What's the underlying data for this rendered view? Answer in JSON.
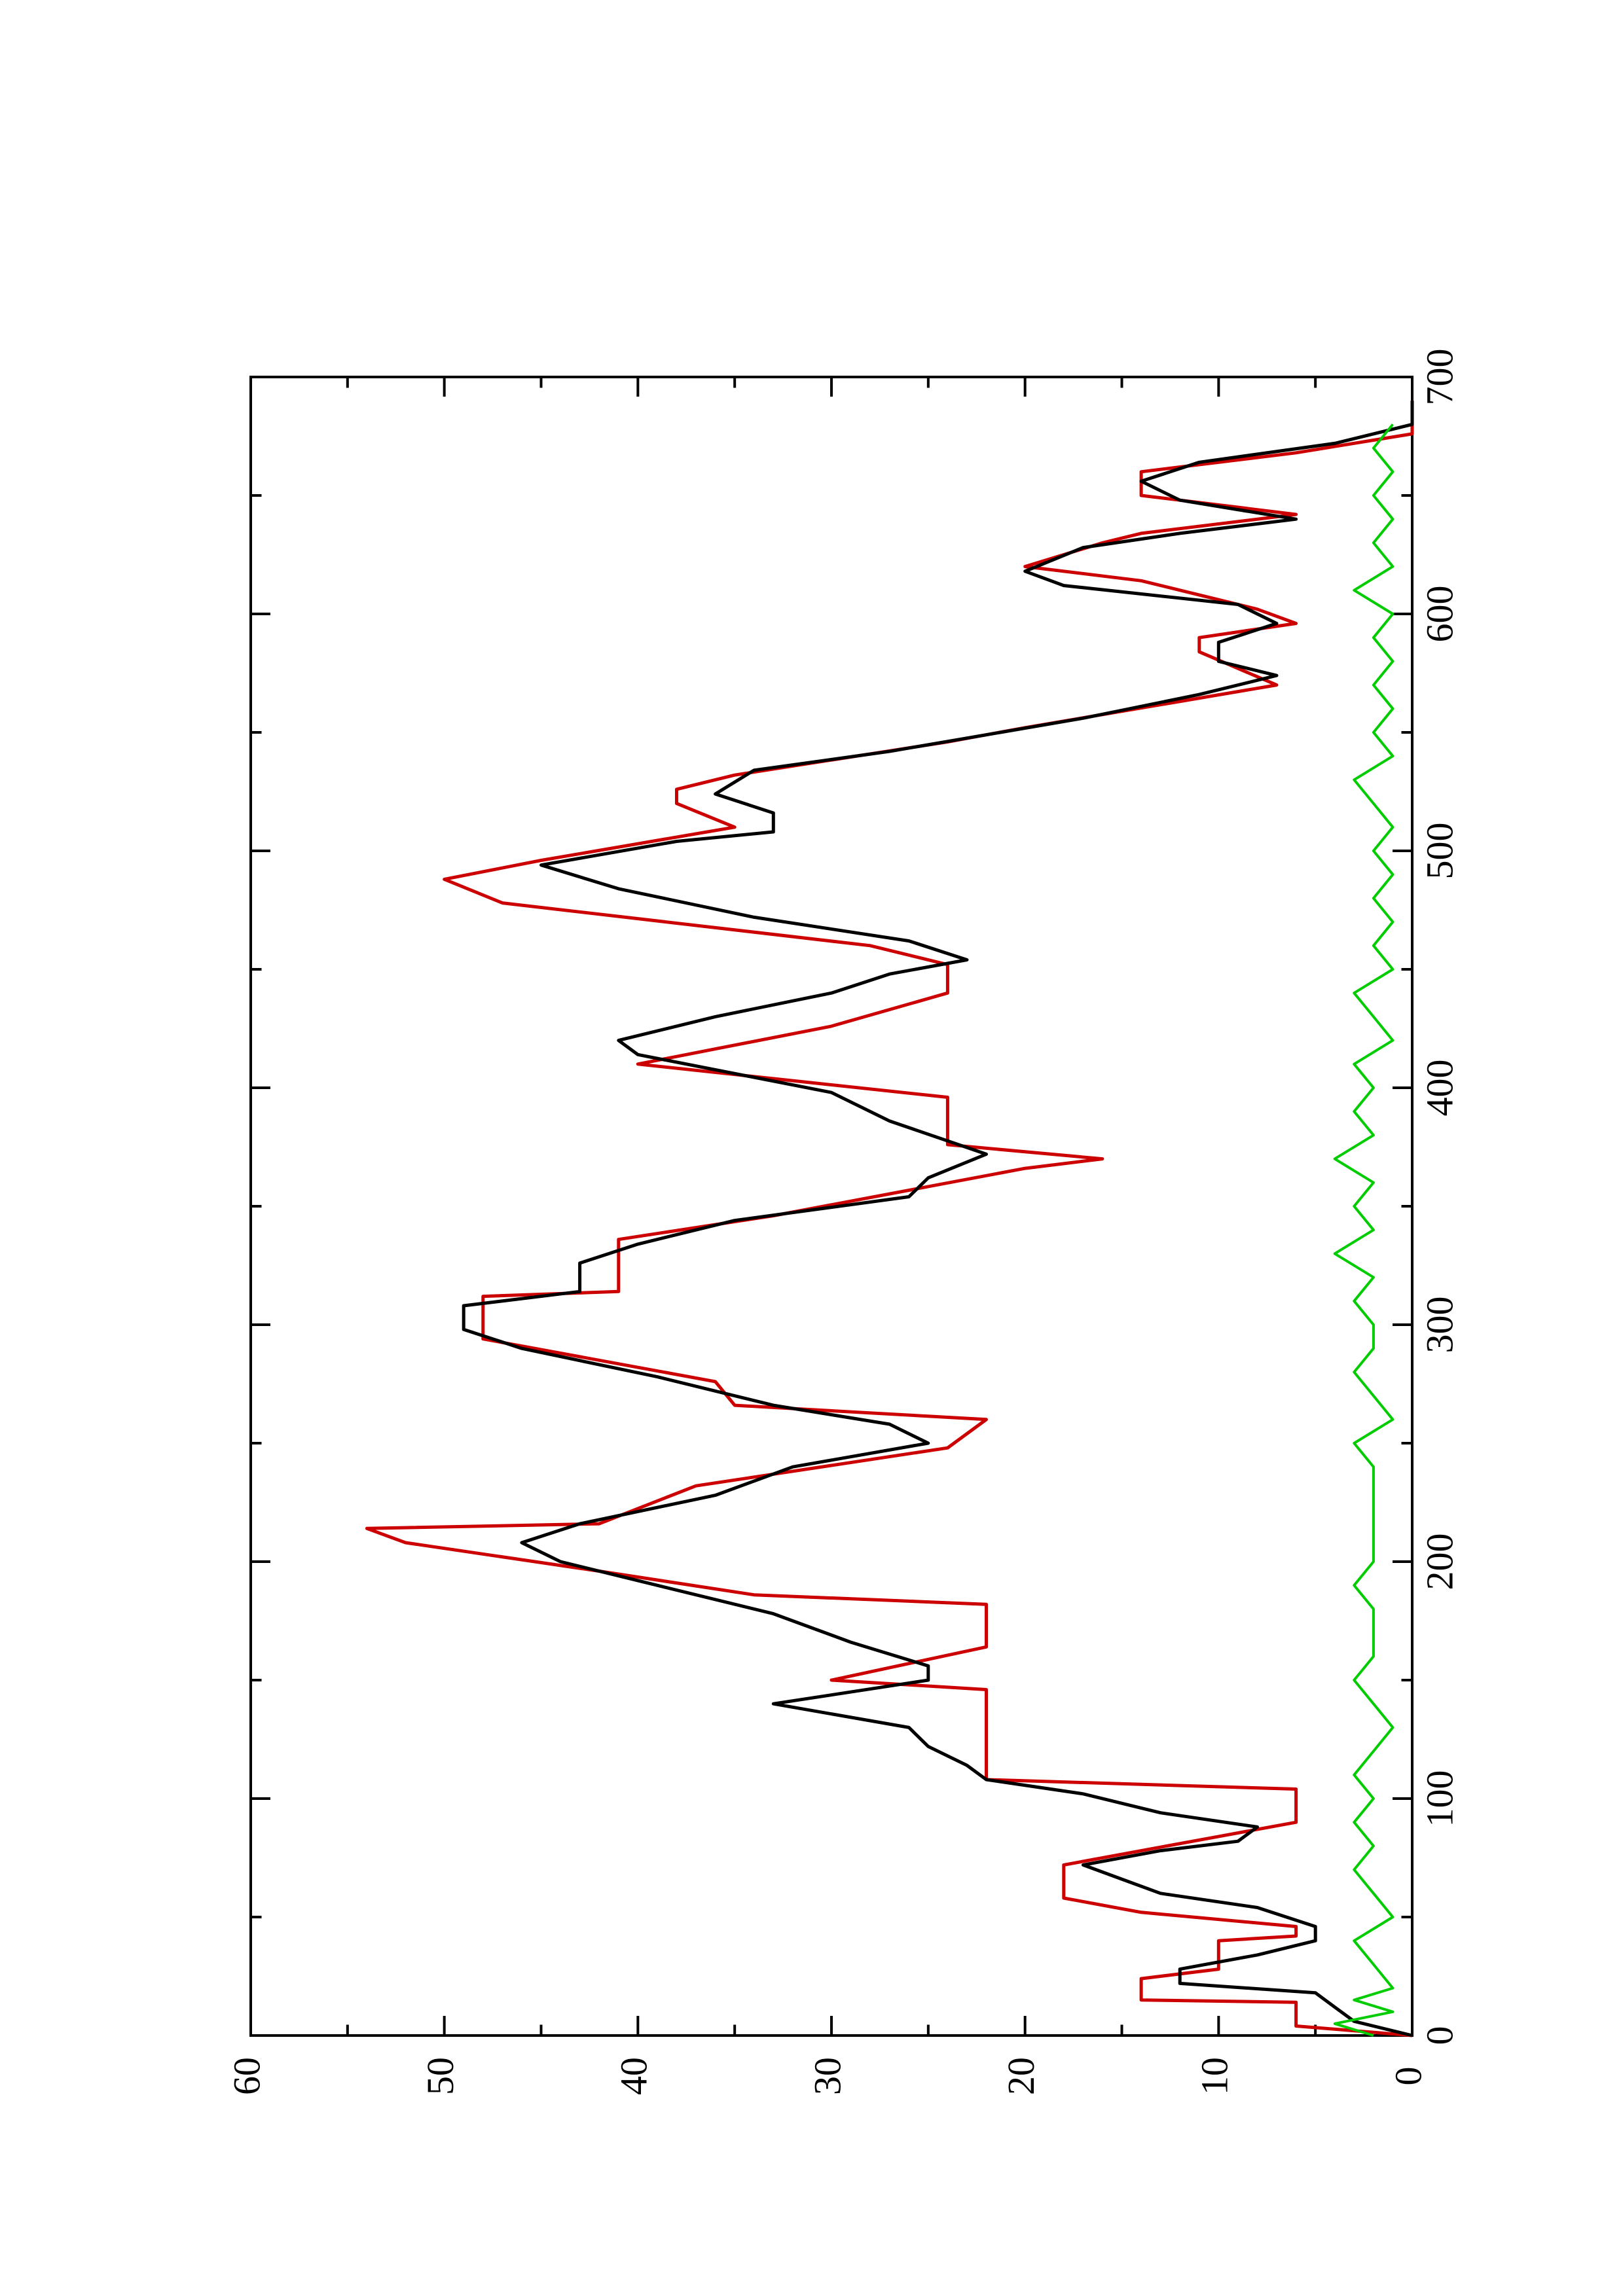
{
  "chart_data": {
    "type": "line",
    "orientation": "rotated-90-ccw",
    "title": "",
    "xlabel": "",
    "ylabel": "",
    "xlim": [
      0,
      700
    ],
    "ylim": [
      0,
      60
    ],
    "x_ticks": [
      "0",
      "100",
      "200",
      "300",
      "400",
      "500",
      "600",
      "700"
    ],
    "y_ticks": [
      "0",
      "10",
      "20",
      "30",
      "40",
      "50",
      "60"
    ],
    "grid": false,
    "legend": "none",
    "series": [
      {
        "color": "#cc0000",
        "style": "stepped",
        "points": [
          [
            0,
            0
          ],
          [
            4,
            6
          ],
          [
            14,
            6
          ],
          [
            15,
            14
          ],
          [
            24,
            14
          ],
          [
            28,
            10
          ],
          [
            40,
            10
          ],
          [
            42,
            6
          ],
          [
            46,
            6
          ],
          [
            52,
            14
          ],
          [
            58,
            18
          ],
          [
            72,
            18
          ],
          [
            84,
            10
          ],
          [
            90,
            6
          ],
          [
            104,
            6
          ],
          [
            108,
            22
          ],
          [
            146,
            22
          ],
          [
            150,
            30
          ],
          [
            164,
            22
          ],
          [
            182,
            22
          ],
          [
            186,
            34
          ],
          [
            196,
            42
          ],
          [
            208,
            52
          ],
          [
            214,
            54
          ],
          [
            216,
            42
          ],
          [
            232,
            37
          ],
          [
            248,
            24
          ],
          [
            260,
            22
          ],
          [
            266,
            35
          ],
          [
            276,
            36
          ],
          [
            294,
            48
          ],
          [
            312,
            48
          ],
          [
            314,
            41
          ],
          [
            336,
            41
          ],
          [
            346,
            33
          ],
          [
            366,
            20
          ],
          [
            370,
            16
          ],
          [
            376,
            24
          ],
          [
            396,
            24
          ],
          [
            410,
            40
          ],
          [
            426,
            30
          ],
          [
            440,
            24
          ],
          [
            452,
            24
          ],
          [
            460,
            28
          ],
          [
            478,
            47
          ],
          [
            488,
            50
          ],
          [
            496,
            45
          ],
          [
            510,
            35
          ],
          [
            520,
            38
          ],
          [
            526,
            38
          ],
          [
            532,
            35
          ],
          [
            546,
            24
          ],
          [
            552,
            20
          ],
          [
            570,
            7
          ],
          [
            584,
            11
          ],
          [
            590,
            11
          ],
          [
            596,
            6
          ],
          [
            602,
            8
          ],
          [
            614,
            14
          ],
          [
            620,
            20
          ],
          [
            630,
            16
          ],
          [
            634,
            14
          ],
          [
            642,
            6
          ],
          [
            648,
            12
          ],
          [
            650,
            14
          ],
          [
            660,
            14
          ],
          [
            668,
            6
          ],
          [
            676,
            0
          ],
          [
            690,
            0
          ]
        ]
      },
      {
        "color": "#000000",
        "style": "line",
        "points": [
          [
            0,
            0
          ],
          [
            6,
            3
          ],
          [
            12,
            4
          ],
          [
            18,
            5
          ],
          [
            22,
            12
          ],
          [
            28,
            12
          ],
          [
            34,
            8
          ],
          [
            40,
            5
          ],
          [
            46,
            5
          ],
          [
            54,
            8
          ],
          [
            60,
            13
          ],
          [
            66,
            15
          ],
          [
            72,
            17
          ],
          [
            78,
            13
          ],
          [
            82,
            9
          ],
          [
            88,
            8
          ],
          [
            94,
            13
          ],
          [
            102,
            17
          ],
          [
            108,
            22
          ],
          [
            114,
            23
          ],
          [
            122,
            25
          ],
          [
            130,
            26
          ],
          [
            140,
            33
          ],
          [
            150,
            25
          ],
          [
            156,
            25
          ],
          [
            166,
            29
          ],
          [
            178,
            33
          ],
          [
            190,
            39
          ],
          [
            200,
            44
          ],
          [
            208,
            46
          ],
          [
            216,
            43
          ],
          [
            228,
            36
          ],
          [
            240,
            32
          ],
          [
            250,
            25
          ],
          [
            258,
            27
          ],
          [
            266,
            33
          ],
          [
            278,
            39
          ],
          [
            290,
            46
          ],
          [
            298,
            49
          ],
          [
            308,
            49
          ],
          [
            314,
            43
          ],
          [
            326,
            43
          ],
          [
            334,
            40
          ],
          [
            344,
            35
          ],
          [
            354,
            26
          ],
          [
            362,
            25
          ],
          [
            372,
            22
          ],
          [
            386,
            27
          ],
          [
            398,
            30
          ],
          [
            414,
            40
          ],
          [
            420,
            41
          ],
          [
            430,
            36
          ],
          [
            440,
            30
          ],
          [
            448,
            27
          ],
          [
            454,
            23
          ],
          [
            462,
            26
          ],
          [
            472,
            34
          ],
          [
            484,
            41
          ],
          [
            494,
            45
          ],
          [
            504,
            38
          ],
          [
            508,
            33
          ],
          [
            516,
            33
          ],
          [
            524,
            36
          ],
          [
            534,
            34
          ],
          [
            542,
            27
          ],
          [
            556,
            17
          ],
          [
            566,
            11
          ],
          [
            574,
            7
          ],
          [
            580,
            10
          ],
          [
            588,
            10
          ],
          [
            596,
            7
          ],
          [
            604,
            9
          ],
          [
            612,
            18
          ],
          [
            618,
            20
          ],
          [
            628,
            17
          ],
          [
            634,
            12
          ],
          [
            640,
            6
          ],
          [
            648,
            12
          ],
          [
            656,
            14
          ],
          [
            664,
            11
          ],
          [
            672,
            4
          ],
          [
            680,
            0
          ],
          [
            690,
            0
          ]
        ]
      },
      {
        "color": "#00cc00",
        "style": "noisy-line",
        "points": [
          [
            0,
            2
          ],
          [
            5,
            4
          ],
          [
            10,
            1
          ],
          [
            15,
            3
          ],
          [
            20,
            1
          ],
          [
            30,
            2
          ],
          [
            40,
            3
          ],
          [
            50,
            1
          ],
          [
            60,
            2
          ],
          [
            70,
            3
          ],
          [
            80,
            2
          ],
          [
            90,
            3
          ],
          [
            100,
            2
          ],
          [
            110,
            3
          ],
          [
            120,
            2
          ],
          [
            130,
            1
          ],
          [
            140,
            2
          ],
          [
            150,
            3
          ],
          [
            160,
            2
          ],
          [
            170,
            2
          ],
          [
            180,
            2
          ],
          [
            190,
            3
          ],
          [
            200,
            2
          ],
          [
            210,
            2
          ],
          [
            220,
            2
          ],
          [
            230,
            2
          ],
          [
            240,
            2
          ],
          [
            250,
            3
          ],
          [
            260,
            1
          ],
          [
            270,
            2
          ],
          [
            280,
            3
          ],
          [
            290,
            2
          ],
          [
            300,
            2
          ],
          [
            310,
            3
          ],
          [
            320,
            2
          ],
          [
            330,
            4
          ],
          [
            340,
            2
          ],
          [
            350,
            3
          ],
          [
            360,
            2
          ],
          [
            370,
            4
          ],
          [
            380,
            2
          ],
          [
            390,
            3
          ],
          [
            400,
            2
          ],
          [
            410,
            3
          ],
          [
            420,
            1
          ],
          [
            430,
            2
          ],
          [
            440,
            3
          ],
          [
            450,
            1
          ],
          [
            460,
            2
          ],
          [
            470,
            1
          ],
          [
            480,
            2
          ],
          [
            490,
            1
          ],
          [
            500,
            2
          ],
          [
            510,
            1
          ],
          [
            520,
            2
          ],
          [
            530,
            3
          ],
          [
            540,
            1
          ],
          [
            550,
            2
          ],
          [
            560,
            1
          ],
          [
            570,
            2
          ],
          [
            580,
            1
          ],
          [
            590,
            2
          ],
          [
            600,
            1
          ],
          [
            610,
            3
          ],
          [
            620,
            1
          ],
          [
            630,
            2
          ],
          [
            640,
            1
          ],
          [
            650,
            2
          ],
          [
            660,
            1
          ],
          [
            670,
            2
          ],
          [
            680,
            1
          ]
        ]
      }
    ]
  }
}
